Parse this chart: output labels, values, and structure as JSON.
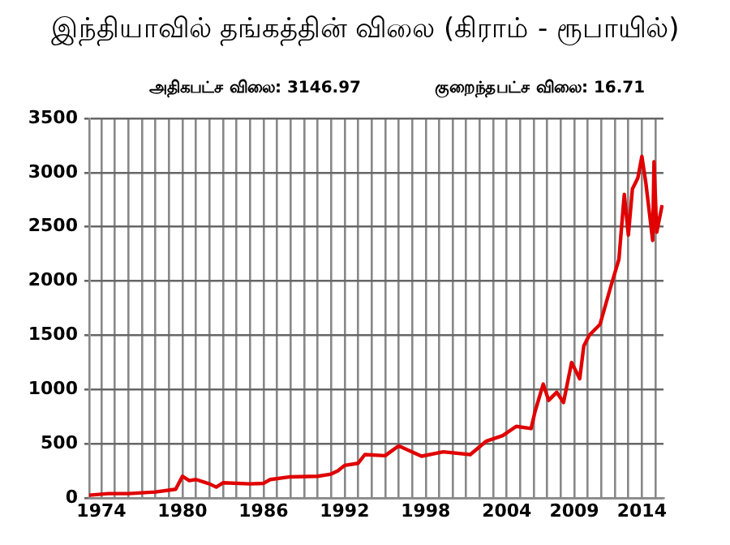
{
  "chart_data": {
    "type": "line",
    "title": "இந்தியாவில் தங்கத்தின் விலை (கிராம் - ரூபாயில்)",
    "subtitle": "அதிகபட்ச விலை: 3146.97",
    "annotations": [
      "குறைந்தபட்ச விலை: 16.71"
    ],
    "x": [
      1973.1,
      1974.5,
      1976,
      1978,
      1979.5,
      1980,
      1980.5,
      1981,
      1982,
      1982.5,
      1983,
      1985,
      1986,
      1986.5,
      1988,
      1990,
      1991,
      1991.5,
      1992,
      1993,
      1993.5,
      1995,
      1996,
      1997.7,
      1999.3,
      2001.3,
      2002.5,
      2003.7,
      2004.7,
      2005.8,
      2006.1,
      2006.7,
      2007.1,
      2007.7,
      2008.2,
      2008.8,
      2009.4,
      2009.7,
      2010.1,
      2010.9,
      2011.7,
      2012.3,
      2012.7,
      2013,
      2013.3,
      2013.7,
      2014,
      2014.3,
      2014.8,
      2014.9,
      2015.1,
      2015.5
    ],
    "series": [
      {
        "color": "#e00000",
        "values": [
          25,
          40,
          40,
          55,
          80,
          200,
          160,
          170,
          130,
          100,
          140,
          130,
          135,
          170,
          195,
          200,
          220,
          250,
          300,
          320,
          400,
          390,
          480,
          385,
          425,
          400,
          525,
          575,
          660,
          640,
          800,
          1050,
          900,
          975,
          880,
          1250,
          1100,
          1400,
          1500,
          1600,
          1950,
          2200,
          2800,
          2425,
          2850,
          2950,
          3150,
          2900,
          2375,
          3100,
          2450,
          2700
        ]
      }
    ],
    "xlim": [
      1973.1,
      2015.6
    ],
    "ylim": [
      0,
      3500
    ],
    "xticks": [
      {
        "value": 1974,
        "label": "1974"
      },
      {
        "value": 1975,
        "label": null
      },
      {
        "value": 1976,
        "label": null
      },
      {
        "value": 1977,
        "label": null
      },
      {
        "value": 1978,
        "label": null
      },
      {
        "value": 1979,
        "label": null
      },
      {
        "value": 1980,
        "label": "1980"
      },
      {
        "value": 1981,
        "label": null
      },
      {
        "value": 1982,
        "label": null
      },
      {
        "value": 1983,
        "label": null
      },
      {
        "value": 1984,
        "label": null
      },
      {
        "value": 1985,
        "label": null
      },
      {
        "value": 1986,
        "label": "1986"
      },
      {
        "value": 1987,
        "label": null
      },
      {
        "value": 1988,
        "label": null
      },
      {
        "value": 1989,
        "label": null
      },
      {
        "value": 1990,
        "label": null
      },
      {
        "value": 1991,
        "label": null
      },
      {
        "value": 1992,
        "label": "1992"
      },
      {
        "value": 1993,
        "label": null
      },
      {
        "value": 1994,
        "label": null
      },
      {
        "value": 1995,
        "label": null
      },
      {
        "value": 1996,
        "label": null
      },
      {
        "value": 1997,
        "label": null
      },
      {
        "value": 1998,
        "label": "1998"
      },
      {
        "value": 1999,
        "label": null
      },
      {
        "value": 2000,
        "label": null
      },
      {
        "value": 2001,
        "label": null
      },
      {
        "value": 2002,
        "label": null
      },
      {
        "value": 2003,
        "label": null
      },
      {
        "value": 2004,
        "label": "2004"
      },
      {
        "value": 2005,
        "label": null
      },
      {
        "value": 2006,
        "label": null
      },
      {
        "value": 2007,
        "label": null
      },
      {
        "value": 2008,
        "label": null
      },
      {
        "value": 2009,
        "label": "2009"
      },
      {
        "value": 2010,
        "label": null
      },
      {
        "value": 2011,
        "label": null
      },
      {
        "value": 2012,
        "label": null
      },
      {
        "value": 2013,
        "label": null
      },
      {
        "value": 2014,
        "label": "2014"
      },
      {
        "value": 2015,
        "label": null
      }
    ],
    "yticks": [
      0,
      500,
      1000,
      1500,
      2000,
      2500,
      3000,
      3500
    ],
    "grid": true,
    "legend": false,
    "marker": "none",
    "line_style": "solid"
  }
}
